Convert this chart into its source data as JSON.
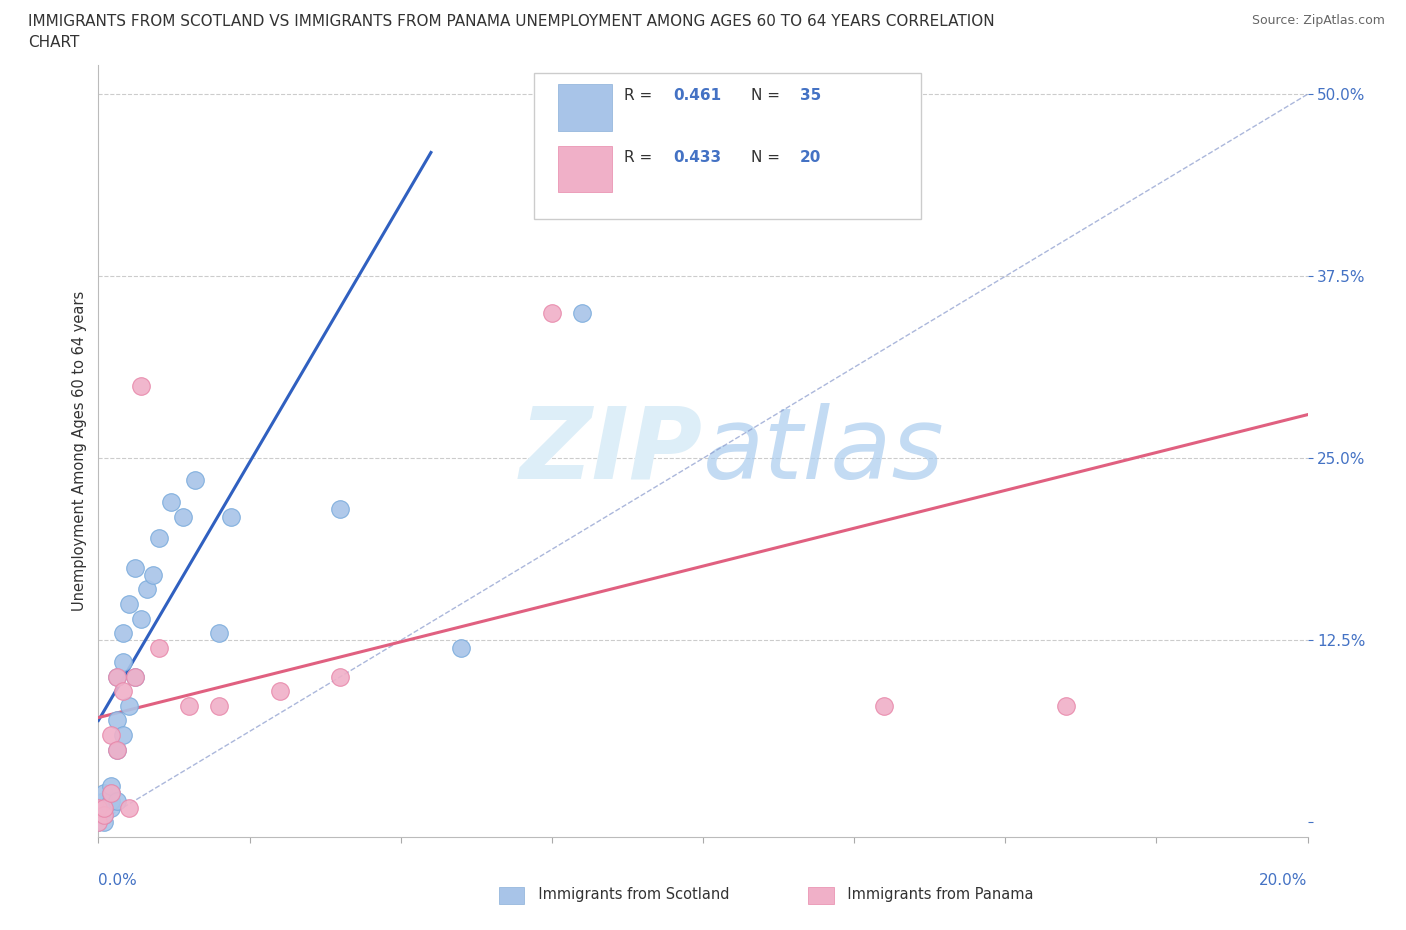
{
  "title_line1": "IMMIGRANTS FROM SCOTLAND VS IMMIGRANTS FROM PANAMA UNEMPLOYMENT AMONG AGES 60 TO 64 YEARS CORRELATION",
  "title_line2": "CHART",
  "source": "Source: ZipAtlas.com",
  "ylabel": "Unemployment Among Ages 60 to 64 years",
  "xlim": [
    0.0,
    0.2
  ],
  "ylim": [
    -0.01,
    0.52
  ],
  "yticks": [
    0.0,
    0.125,
    0.25,
    0.375,
    0.5
  ],
  "ytick_labels": [
    "",
    "12.5%",
    "25.0%",
    "37.5%",
    "50.0%"
  ],
  "scotland_R": 0.461,
  "scotland_N": 35,
  "panama_R": 0.433,
  "panama_N": 20,
  "scotland_color": "#a8c4e8",
  "panama_color": "#f0b0c8",
  "scotland_trend_color": "#3060c0",
  "panama_trend_color": "#e06080",
  "diag_color": "#8899cc",
  "watermark_color": "#ddeeff",
  "scotland_x": [
    0.0,
    0.0,
    0.0,
    0.001,
    0.001,
    0.001,
    0.001,
    0.001,
    0.002,
    0.002,
    0.002,
    0.002,
    0.003,
    0.003,
    0.003,
    0.003,
    0.004,
    0.004,
    0.004,
    0.005,
    0.005,
    0.006,
    0.006,
    0.007,
    0.008,
    0.009,
    0.01,
    0.012,
    0.014,
    0.016,
    0.02,
    0.022,
    0.04,
    0.06,
    0.08
  ],
  "scotland_y": [
    0.0,
    0.005,
    0.01,
    0.0,
    0.005,
    0.01,
    0.015,
    0.02,
    0.01,
    0.015,
    0.02,
    0.025,
    0.015,
    0.05,
    0.07,
    0.1,
    0.06,
    0.11,
    0.13,
    0.08,
    0.15,
    0.1,
    0.175,
    0.14,
    0.16,
    0.17,
    0.195,
    0.22,
    0.21,
    0.235,
    0.13,
    0.21,
    0.215,
    0.12,
    0.35
  ],
  "panama_x": [
    0.0,
    0.0,
    0.001,
    0.001,
    0.002,
    0.002,
    0.003,
    0.003,
    0.004,
    0.005,
    0.006,
    0.007,
    0.01,
    0.015,
    0.02,
    0.03,
    0.04,
    0.075,
    0.13,
    0.16
  ],
  "panama_y": [
    0.0,
    0.01,
    0.005,
    0.01,
    0.02,
    0.06,
    0.05,
    0.1,
    0.09,
    0.01,
    0.1,
    0.3,
    0.12,
    0.08,
    0.08,
    0.09,
    0.1,
    0.35,
    0.08,
    0.08
  ],
  "scotland_trend_x": [
    0.0,
    0.055
  ],
  "scotland_trend_y": [
    0.07,
    0.46
  ],
  "panama_trend_x": [
    0.0,
    0.2
  ],
  "panama_trend_y": [
    0.072,
    0.28
  ],
  "diag_trend_x": [
    0.0,
    0.2
  ],
  "diag_trend_y": [
    0.0,
    0.5
  ]
}
